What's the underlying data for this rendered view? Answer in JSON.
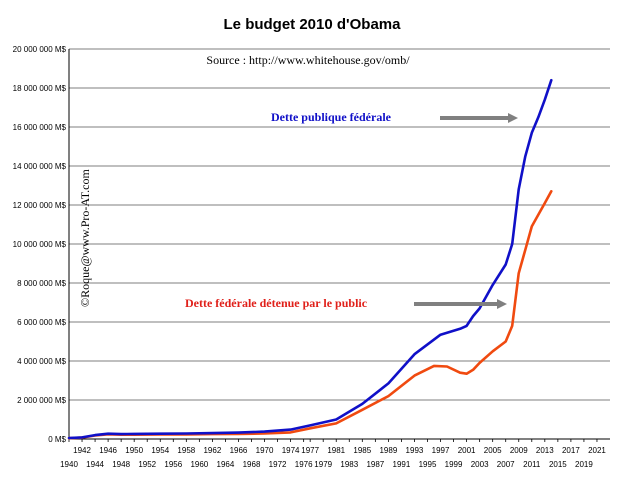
{
  "chart_data": {
    "type": "line",
    "title": "Le budget 2010 d'Obama",
    "subtitle": "Source : http://www.whitehouse.gov/omb/",
    "watermark": "©Roque@www.Pro-AT.com",
    "xlabel": "",
    "ylabel": "",
    "xlim": [
      1940,
      2023
    ],
    "ylim": [
      0,
      20000000
    ],
    "grid": true,
    "y_ticks": [
      {
        "value": 0,
        "label": "0 M$"
      },
      {
        "value": 2000000,
        "label": "2 000 000 M$"
      },
      {
        "value": 4000000,
        "label": "4 000 000 M$"
      },
      {
        "value": 6000000,
        "label": "6 000 000 M$"
      },
      {
        "value": 8000000,
        "label": "8 000 000 M$"
      },
      {
        "value": 10000000,
        "label": "10 000 000 M$"
      },
      {
        "value": 12000000,
        "label": "12 000 000 M$"
      },
      {
        "value": 14000000,
        "label": "14 000 000 M$"
      },
      {
        "value": 16000000,
        "label": "16 000 000 M$"
      },
      {
        "value": 18000000,
        "label": "18 000 000 M$"
      },
      {
        "value": 20000000,
        "label": "20 000 000 M$"
      }
    ],
    "x_ticks_upper": [
      "1942",
      "1946",
      "1950",
      "1954",
      "1958",
      "1962",
      "1966",
      "1970",
      "1974",
      "1977",
      "1981",
      "1985",
      "1989",
      "1993",
      "1997",
      "2001",
      "2005",
      "2009",
      "2013",
      "2017",
      "2021"
    ],
    "x_ticks_lower": [
      "1940",
      "1944",
      "1948",
      "1952",
      "1956",
      "1960",
      "1964",
      "1968",
      "1972",
      "1976",
      "1979",
      "1983",
      "1987",
      "1991",
      "1995",
      "1999",
      "2003",
      "2007",
      "2011",
      "2015",
      "2019"
    ],
    "series": [
      {
        "name": "Dette publique fédérale",
        "color": "#1010c8",
        "x": [
          1940,
          1942,
          1944,
          1946,
          1948,
          1950,
          1954,
          1958,
          1962,
          1966,
          1970,
          1974,
          1977,
          1981,
          1985,
          1989,
          1993,
          1997,
          2000,
          2001,
          2002,
          2003,
          2005,
          2007,
          2008,
          2009,
          2010,
          2011,
          2012,
          2013,
          2014
        ],
        "y": [
          50000,
          80000,
          200000,
          270000,
          250000,
          260000,
          270000,
          280000,
          300000,
          330000,
          380000,
          480000,
          700000,
          1000000,
          1800000,
          2850000,
          4350000,
          5350000,
          5650000,
          5800000,
          6300000,
          6700000,
          7900000,
          8950000,
          10000000,
          12800000,
          14500000,
          15700000,
          16500000,
          17400000,
          18400000
        ]
      },
      {
        "name": "Dette fédérale détenue par le public",
        "color": "#f04a10",
        "x": [
          1940,
          1942,
          1944,
          1946,
          1948,
          1950,
          1954,
          1958,
          1962,
          1966,
          1970,
          1974,
          1977,
          1981,
          1985,
          1989,
          1993,
          1996,
          1998,
          2000,
          2001,
          2002,
          2003,
          2005,
          2007,
          2008,
          2009,
          2010,
          2011,
          2012,
          2013,
          2014
        ],
        "y": [
          40000,
          70000,
          180000,
          240000,
          220000,
          220000,
          230000,
          230000,
          250000,
          260000,
          280000,
          340000,
          550000,
          800000,
          1500000,
          2200000,
          3250000,
          3750000,
          3720000,
          3400000,
          3350000,
          3550000,
          3900000,
          4500000,
          5000000,
          5800000,
          8500000,
          9700000,
          10900000,
          11500000,
          12100000,
          12700000
        ]
      }
    ],
    "annotations": [
      {
        "text": "Dette publique fédérale",
        "color": "#1010c8",
        "arrow_to_year": 2011
      },
      {
        "text": "Dette fédérale détenue par le public",
        "color": "#e0201a",
        "arrow_to_year": 2009
      }
    ],
    "legend": "none"
  }
}
